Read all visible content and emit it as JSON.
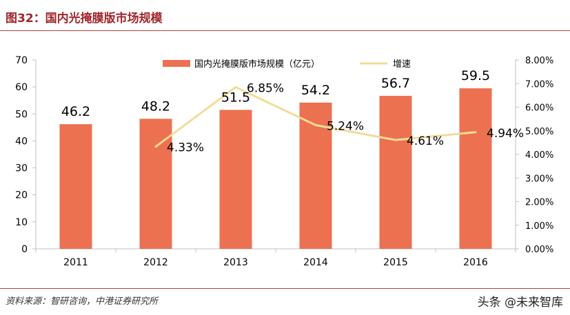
{
  "figure_title": "图32：国内光掩膜版市场规模",
  "source_note": "资料来源：智研咨询，中港证券研究所",
  "watermark": "头条 @未来智库",
  "chart_data": {
    "type": "bar+line",
    "categories": [
      "2011",
      "2012",
      "2013",
      "2014",
      "2015",
      "2016"
    ],
    "series": [
      {
        "name": "国内光掩膜版市场规模（亿元）",
        "type": "bar",
        "axis": "left",
        "values": [
          46.2,
          48.2,
          51.5,
          54.2,
          56.7,
          59.5
        ],
        "labels": [
          "46.2",
          "48.2",
          "51.5",
          "54.2",
          "56.7",
          "59.5"
        ]
      },
      {
        "name": "增速",
        "type": "line",
        "axis": "right",
        "values": [
          null,
          4.33,
          6.85,
          5.24,
          4.61,
          4.94
        ],
        "labels": [
          "",
          "4.33%",
          "6.85%",
          "5.24%",
          "4.61%",
          "4.94%"
        ]
      }
    ],
    "y_left": {
      "min": 0,
      "max": 70,
      "ticks": [
        "0",
        "10",
        "20",
        "30",
        "40",
        "50",
        "60",
        "70"
      ]
    },
    "y_right": {
      "min": 0,
      "max": 8,
      "ticks": [
        "0.00%",
        "1.00%",
        "2.00%",
        "3.00%",
        "4.00%",
        "5.00%",
        "6.00%",
        "7.00%",
        "8.00%"
      ]
    },
    "grid": false,
    "legend_position": "top-center",
    "colors": {
      "bar": "#ec7150",
      "line": "#f2dc97",
      "text": "#000000",
      "axis": "#bfbfbf"
    }
  }
}
